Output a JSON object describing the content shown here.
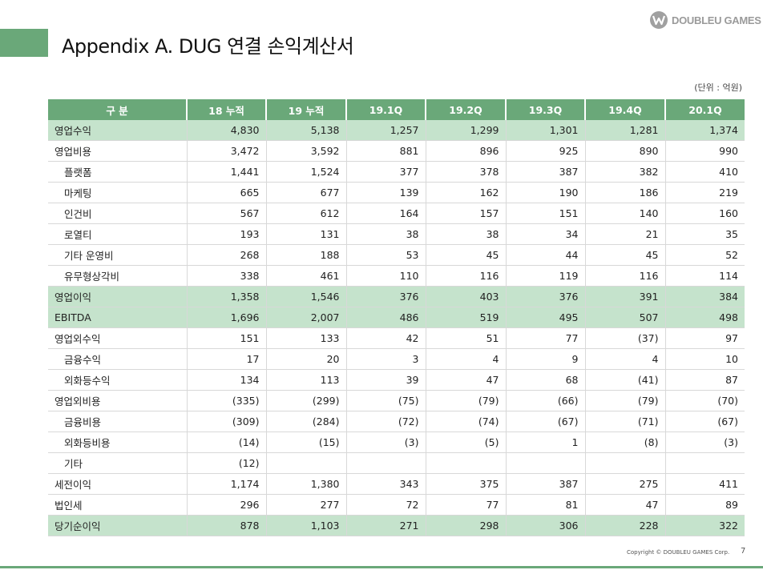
{
  "logo": {
    "text": "DOUBLEU GAMES",
    "icon": "doubleu-w-logo-icon"
  },
  "title": "Appendix A. DUG 연결 손익계산서",
  "unit_note": "(단위 : 억원)",
  "table": {
    "headers": [
      "구 분",
      "18 누적",
      "19 누적",
      "19.1Q",
      "19.2Q",
      "19.3Q",
      "19.4Q",
      "20.1Q"
    ],
    "rows": [
      {
        "label": "영업수익",
        "indent": false,
        "highlight": true,
        "values": [
          "4,830",
          "5,138",
          "1,257",
          "1,299",
          "1,301",
          "1,281",
          "1,374"
        ]
      },
      {
        "label": "영업비용",
        "indent": false,
        "highlight": false,
        "values": [
          "3,472",
          "3,592",
          "881",
          "896",
          "925",
          "890",
          "990"
        ]
      },
      {
        "label": "플랫폼",
        "indent": true,
        "highlight": false,
        "values": [
          "1,441",
          "1,524",
          "377",
          "378",
          "387",
          "382",
          "410"
        ]
      },
      {
        "label": "마케팅",
        "indent": true,
        "highlight": false,
        "values": [
          "665",
          "677",
          "139",
          "162",
          "190",
          "186",
          "219"
        ]
      },
      {
        "label": "인건비",
        "indent": true,
        "highlight": false,
        "values": [
          "567",
          "612",
          "164",
          "157",
          "151",
          "140",
          "160"
        ]
      },
      {
        "label": "로열티",
        "indent": true,
        "highlight": false,
        "values": [
          "193",
          "131",
          "38",
          "38",
          "34",
          "21",
          "35"
        ]
      },
      {
        "label": "기타 운영비",
        "indent": true,
        "highlight": false,
        "values": [
          "268",
          "188",
          "53",
          "45",
          "44",
          "45",
          "52"
        ]
      },
      {
        "label": "유무형상각비",
        "indent": true,
        "highlight": false,
        "values": [
          "338",
          "461",
          "110",
          "116",
          "119",
          "116",
          "114"
        ]
      },
      {
        "label": "영업이익",
        "indent": false,
        "highlight": true,
        "values": [
          "1,358",
          "1,546",
          "376",
          "403",
          "376",
          "391",
          "384"
        ]
      },
      {
        "label": "EBITDA",
        "indent": false,
        "highlight": true,
        "values": [
          "1,696",
          "2,007",
          "486",
          "519",
          "495",
          "507",
          "498"
        ]
      },
      {
        "label": "영업외수익",
        "indent": false,
        "highlight": false,
        "values": [
          "151",
          "133",
          "42",
          "51",
          "77",
          "(37)",
          "97"
        ]
      },
      {
        "label": "금융수익",
        "indent": true,
        "highlight": false,
        "values": [
          "17",
          "20",
          "3",
          "4",
          "9",
          "4",
          "10"
        ]
      },
      {
        "label": "외화등수익",
        "indent": true,
        "highlight": false,
        "values": [
          "134",
          "113",
          "39",
          "47",
          "68",
          "(41)",
          "87"
        ]
      },
      {
        "label": "영업외비용",
        "indent": false,
        "highlight": false,
        "values": [
          "(335)",
          "(299)",
          "(75)",
          "(79)",
          "(66)",
          "(79)",
          "(70)"
        ]
      },
      {
        "label": "금융비용",
        "indent": true,
        "highlight": false,
        "values": [
          "(309)",
          "(284)",
          "(72)",
          "(74)",
          "(67)",
          "(71)",
          "(67)"
        ]
      },
      {
        "label": "외화등비용",
        "indent": true,
        "highlight": false,
        "values": [
          "(14)",
          "(15)",
          "(3)",
          "(5)",
          "1",
          "(8)",
          "(3)"
        ]
      },
      {
        "label": "기타",
        "indent": true,
        "highlight": false,
        "values": [
          "(12)",
          "",
          "",
          "",
          "",
          "",
          ""
        ]
      },
      {
        "label": "세전이익",
        "indent": false,
        "highlight": false,
        "values": [
          "1,174",
          "1,380",
          "343",
          "375",
          "387",
          "275",
          "411"
        ]
      },
      {
        "label": "법인세",
        "indent": false,
        "highlight": false,
        "values": [
          "296",
          "277",
          "72",
          "77",
          "81",
          "47",
          "89"
        ]
      },
      {
        "label": "당기순이익",
        "indent": false,
        "highlight": true,
        "values": [
          "878",
          "1,103",
          "271",
          "298",
          "306",
          "228",
          "322"
        ]
      }
    ]
  },
  "footer": {
    "copyright": "Copyright © DOUBLEU GAMES Corp.",
    "page_number": "7"
  },
  "colors": {
    "accent": "#6aa879",
    "highlight_row": "#c5e3cc"
  }
}
